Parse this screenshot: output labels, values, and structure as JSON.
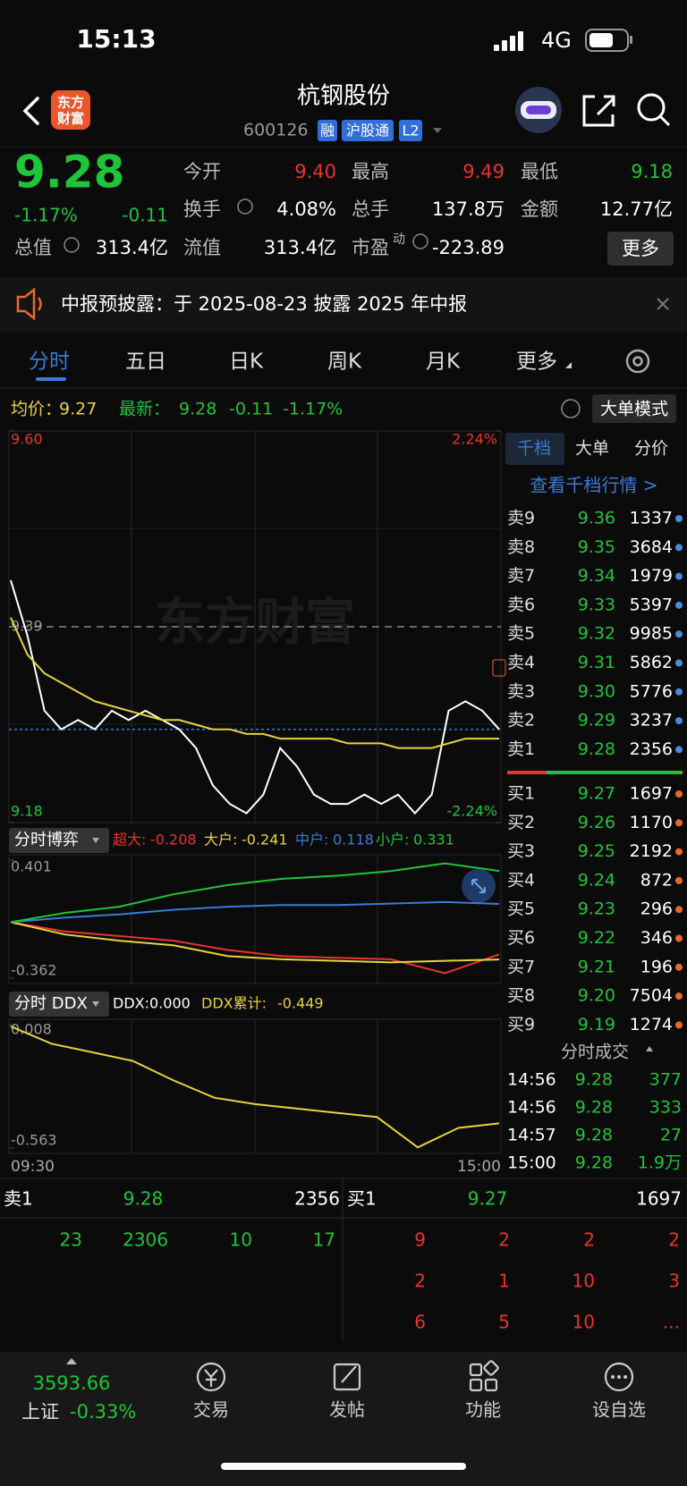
{
  "status": {
    "time": "15:13",
    "network": "4G"
  },
  "header": {
    "logo": [
      "东方",
      "财富"
    ],
    "name": "杭钢股份",
    "code": "600126",
    "badges": [
      "融",
      "沪股通",
      "L2"
    ]
  },
  "quote": {
    "price": "9.28",
    "change_pct": "-1.17%",
    "change": "-0.11",
    "fields": [
      {
        "label": "今开",
        "value": "9.40",
        "color": "#e8332f"
      },
      {
        "label": "最高",
        "value": "9.49",
        "color": "#e8332f"
      },
      {
        "label": "最低",
        "value": "9.18",
        "color": "#1fc43b"
      },
      {
        "label": "换手",
        "value": "4.08%",
        "color": "#ffffff"
      },
      {
        "label": "总手",
        "value": "137.8万",
        "color": "#ffffff"
      },
      {
        "label": "金额",
        "value": "12.77亿",
        "color": "#ffffff"
      },
      {
        "label": "总值",
        "value": "313.4亿",
        "color": "#ffffff"
      },
      {
        "label": "流值",
        "value": "313.4亿",
        "color": "#ffffff"
      },
      {
        "label": "市盈",
        "sup": "动",
        "value": "-223.89",
        "color": "#ffffff"
      }
    ],
    "more": "更多"
  },
  "notice": "中报预披露：于 2025-08-23 披露 2025 年中报",
  "tabs": [
    "分时",
    "五日",
    "日K",
    "周K",
    "月K",
    "更多"
  ],
  "info": {
    "avg_label": "均价：",
    "avg": "9.27",
    "latest_label": "最新：",
    "latest": "9.28",
    "change": "-0.11",
    "change_pct": "-1.17%",
    "big_order": "大单模式"
  },
  "intraday": {
    "watermark": "东方财富",
    "ylim": [
      9.18,
      9.6
    ],
    "yticks": [
      {
        "value": 9.6,
        "label": "9.60"
      },
      9.18
    ],
    "y2lim": [
      -2.24,
      2.24
    ],
    "y2ticks": [
      {
        "value": 2.24,
        "label": "2.24%"
      },
      {
        "value": -2.24,
        "label": "-2.24%"
      }
    ],
    "reference": 9.39,
    "time_labels": [
      "09:30",
      "15:00"
    ],
    "series": [
      {
        "name": "最新",
        "color": "#ffffff",
        "values": [
          9.44,
          9.38,
          9.3,
          9.28,
          9.29,
          9.28,
          9.3,
          9.29,
          9.3,
          9.29,
          9.28,
          9.26,
          9.22,
          9.2,
          9.19,
          9.21,
          9.26,
          9.24,
          9.21,
          9.2,
          9.2,
          9.21,
          9.2,
          9.21,
          9.19,
          9.21,
          9.3,
          9.31,
          9.3,
          9.28
        ]
      },
      {
        "name": "均价",
        "color": "#e8d23c",
        "values": [
          9.4,
          9.36,
          9.34,
          9.33,
          9.32,
          9.31,
          9.305,
          9.3,
          9.295,
          9.29,
          9.29,
          9.285,
          9.28,
          9.28,
          9.275,
          9.275,
          9.27,
          9.27,
          9.27,
          9.27,
          9.265,
          9.265,
          9.265,
          9.26,
          9.26,
          9.26,
          9.265,
          9.27,
          9.27,
          9.27
        ]
      }
    ]
  },
  "game": {
    "title": "分时博弈",
    "ylim": [
      -0.362,
      0.401
    ],
    "yticks": [
      0.401,
      -0.362
    ],
    "series": [
      {
        "name": "超大:",
        "value": "-0.208",
        "color": "#e8332f",
        "values": [
          0,
          -0.06,
          -0.09,
          -0.12,
          -0.18,
          -0.22,
          -0.23,
          -0.24,
          -0.33,
          -0.208
        ]
      },
      {
        "name": "大户:",
        "value": "-0.241",
        "color": "#e8d23c",
        "values": [
          0,
          -0.08,
          -0.12,
          -0.15,
          -0.22,
          -0.24,
          -0.25,
          -0.26,
          -0.25,
          -0.241
        ]
      },
      {
        "name": "中户:",
        "value": "0.118",
        "color": "#3a7bd5",
        "values": [
          0,
          0.03,
          0.05,
          0.08,
          0.1,
          0.11,
          0.11,
          0.12,
          0.13,
          0.118
        ]
      },
      {
        "name": "小户:",
        "value": "0.331",
        "color": "#1fc43b",
        "values": [
          0,
          0.06,
          0.1,
          0.18,
          0.24,
          0.28,
          0.3,
          0.33,
          0.38,
          0.331
        ]
      }
    ]
  },
  "ddx": {
    "title": "分时 DDX",
    "ddx": "DDX:0.000",
    "cum_label": "DDX累计:",
    "cum_value": "-0.449",
    "ylim": [
      -0.563,
      0.008
    ],
    "yticks": [
      0.008,
      -0.563
    ],
    "series": [
      {
        "name": "DDX累计",
        "color": "#e8d23c",
        "values": [
          0,
          -0.08,
          -0.12,
          -0.16,
          -0.25,
          -0.33,
          -0.36,
          -0.38,
          -0.4,
          -0.42,
          -0.56,
          -0.47,
          -0.449
        ]
      }
    ]
  },
  "book": {
    "tabs": [
      "千档",
      "大单",
      "分价"
    ],
    "link": "查看千档行情 >",
    "asks": [
      [
        "卖9",
        "9.36",
        "1337"
      ],
      [
        "卖8",
        "9.35",
        "3684"
      ],
      [
        "卖7",
        "9.34",
        "1979"
      ],
      [
        "卖6",
        "9.33",
        "5397"
      ],
      [
        "卖5",
        "9.32",
        "9985"
      ],
      [
        "卖4",
        "9.31",
        "5862"
      ],
      [
        "卖3",
        "9.30",
        "5776"
      ],
      [
        "卖2",
        "9.29",
        "3237"
      ],
      [
        "卖1",
        "9.28",
        "2356"
      ]
    ],
    "bids": [
      [
        "买1",
        "9.27",
        "1697"
      ],
      [
        "买2",
        "9.26",
        "1170"
      ],
      [
        "买3",
        "9.25",
        "2192"
      ],
      [
        "买4",
        "9.24",
        "872"
      ],
      [
        "买5",
        "9.23",
        "296"
      ],
      [
        "买6",
        "9.22",
        "346"
      ],
      [
        "买7",
        "9.21",
        "196"
      ],
      [
        "买8",
        "9.20",
        "7504"
      ],
      [
        "买9",
        "9.19",
        "1274"
      ]
    ],
    "trades_title": "分时成交",
    "trades": [
      [
        "14:56",
        "9.28",
        "377"
      ],
      [
        "14:56",
        "9.28",
        "333"
      ],
      [
        "14:57",
        "9.28",
        "27"
      ],
      [
        "15:00",
        "9.28",
        "1.9万"
      ]
    ]
  },
  "queue": {
    "sell": [
      "卖1",
      "9.28",
      "2356"
    ],
    "buy": [
      "买1",
      "9.27",
      "1697"
    ],
    "sell_orders": [
      23,
      2306,
      10,
      17
    ],
    "buy_orders": [
      [
        9,
        2,
        2,
        2
      ],
      [
        2,
        1,
        10,
        3
      ],
      [
        6,
        5,
        10,
        "..."
      ]
    ]
  },
  "nav": {
    "index_value": "3593.66",
    "index_name": "上证",
    "index_change": "-0.33%",
    "items": [
      "交易",
      "发帖",
      "功能",
      "设自选"
    ]
  }
}
